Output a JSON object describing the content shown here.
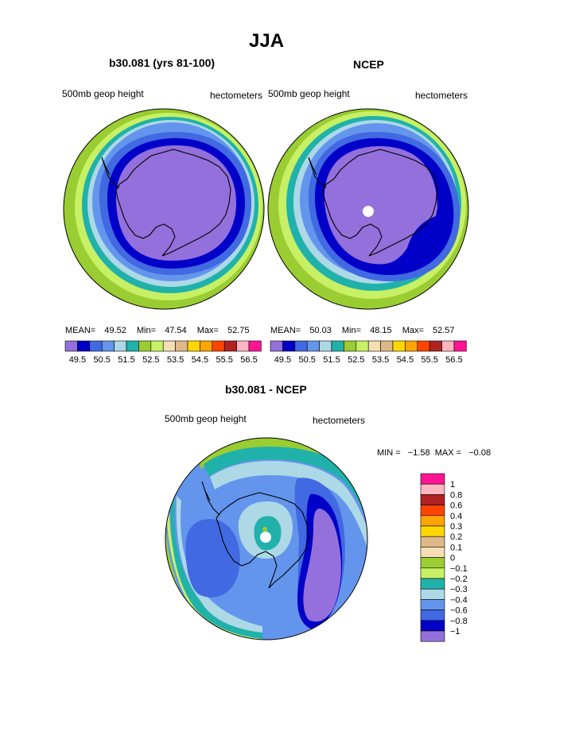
{
  "page": {
    "title": "JJA"
  },
  "panel_model": {
    "subtitle": "b30.081 (yrs 81-100)",
    "left_label": "500mb geop height",
    "right_label": "hectometers",
    "stats": {
      "mean_label": "MEAN=",
      "mean": "49.52",
      "min_label": "Min=",
      "min": "47.54",
      "max_label": "Max=",
      "max": "52.75"
    }
  },
  "panel_ncep": {
    "subtitle": "NCEP",
    "left_label": "500mb geop height",
    "right_label": "hectometers",
    "stats": {
      "mean_label": "MEAN=",
      "mean": "50.03",
      "min_label": "Min=",
      "min": "48.15",
      "max_label": "Max=",
      "max": "52.57"
    }
  },
  "panel_diff": {
    "subtitle": "b30.081 - NCEP",
    "left_label": "500mb geop height",
    "right_label": "hectometers",
    "minmax_text": "MIN =   −1.58  MAX =   −0.08"
  },
  "colorbar_top": {
    "colors": [
      "#9370db",
      "#0000c8",
      "#4169e1",
      "#6495ed",
      "#add8e6",
      "#20b2aa",
      "#9acd32",
      "#c8f064",
      "#f5deb3",
      "#deb887",
      "#ffd700",
      "#ffa500",
      "#ff4500",
      "#b22222",
      "#ffb6c1",
      "#ff1493"
    ],
    "labels": [
      "49.5",
      "50.5",
      "51.5",
      "52.5",
      "53.5",
      "54.5",
      "55.5",
      "56.5"
    ]
  },
  "colorbar_diff": {
    "colors": [
      "#9370db",
      "#0000c8",
      "#4169e1",
      "#6495ed",
      "#add8e6",
      "#20b2aa",
      "#c8f064",
      "#9acd32",
      "#f5deb3",
      "#deb887",
      "#ffd700",
      "#ffa500",
      "#ff4500",
      "#b22222",
      "#ffb6c1",
      "#ff1493"
    ],
    "labels": [
      "1",
      "0.8",
      "0.6",
      "0.4",
      "0.3",
      "0.2",
      "0.1",
      "0",
      "−0.1",
      "−0.2",
      "−0.3",
      "−0.4",
      "−0.6",
      "−0.8",
      "−1"
    ]
  },
  "chart_data": [
    {
      "type": "heatmap",
      "title": "b30.081 (yrs 81-100)",
      "projection": "south polar stereographic",
      "variable": "500mb geop height",
      "units": "hectometers",
      "levels": [
        49.5,
        50.5,
        51.5,
        52.5,
        53.5,
        54.5,
        55.5,
        56.5
      ],
      "mean": 49.52,
      "min": 47.54,
      "max": 52.75
    },
    {
      "type": "heatmap",
      "title": "NCEP",
      "projection": "south polar stereographic",
      "variable": "500mb geop height",
      "units": "hectometers",
      "levels": [
        49.5,
        50.5,
        51.5,
        52.5,
        53.5,
        54.5,
        55.5,
        56.5
      ],
      "mean": 50.03,
      "min": 48.15,
      "max": 52.57
    },
    {
      "type": "heatmap",
      "title": "b30.081 - NCEP",
      "projection": "south polar stereographic",
      "variable": "500mb geop height",
      "units": "hectometers",
      "levels": [
        -1,
        -0.8,
        -0.6,
        -0.4,
        -0.3,
        -0.2,
        -0.1,
        0,
        0.1,
        0.2,
        0.3,
        0.4,
        0.6,
        0.8,
        1
      ],
      "min": -1.58,
      "max": -0.08
    }
  ]
}
